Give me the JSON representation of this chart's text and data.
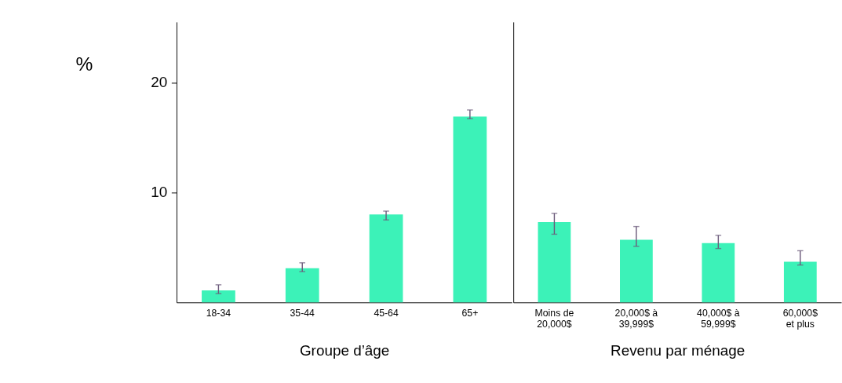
{
  "chart_data": [
    {
      "type": "bar",
      "xlabel": "Groupe d’âge",
      "ylabel": "%",
      "categories": [
        "18-34",
        "35-44",
        "45-64",
        "65+"
      ],
      "values": [
        1.1,
        3.1,
        8.0,
        16.9
      ],
      "errors": [
        [
          0.8,
          1.6
        ],
        [
          2.8,
          3.6
        ],
        [
          7.5,
          8.3
        ],
        [
          16.7,
          17.5
        ]
      ],
      "color": "#3cf2b8",
      "ylim": [
        0,
        25.5
      ],
      "yticks": [
        10,
        20
      ]
    },
    {
      "type": "bar",
      "xlabel": "Revenu par ménage",
      "categories": [
        "Moins de\n20,000$",
        "20,000$ à\n39,999$",
        "40,000$ à\n59,999$",
        "60,000$\net plus"
      ],
      "values": [
        7.3,
        5.7,
        5.4,
        3.7
      ],
      "errors": [
        [
          6.2,
          8.1
        ],
        [
          5.1,
          6.9
        ],
        [
          4.9,
          6.1
        ],
        [
          3.4,
          4.7
        ]
      ],
      "color": "#3cf2b8",
      "ylim": [
        0,
        25.5
      ],
      "tick_labels": "x"
    }
  ]
}
